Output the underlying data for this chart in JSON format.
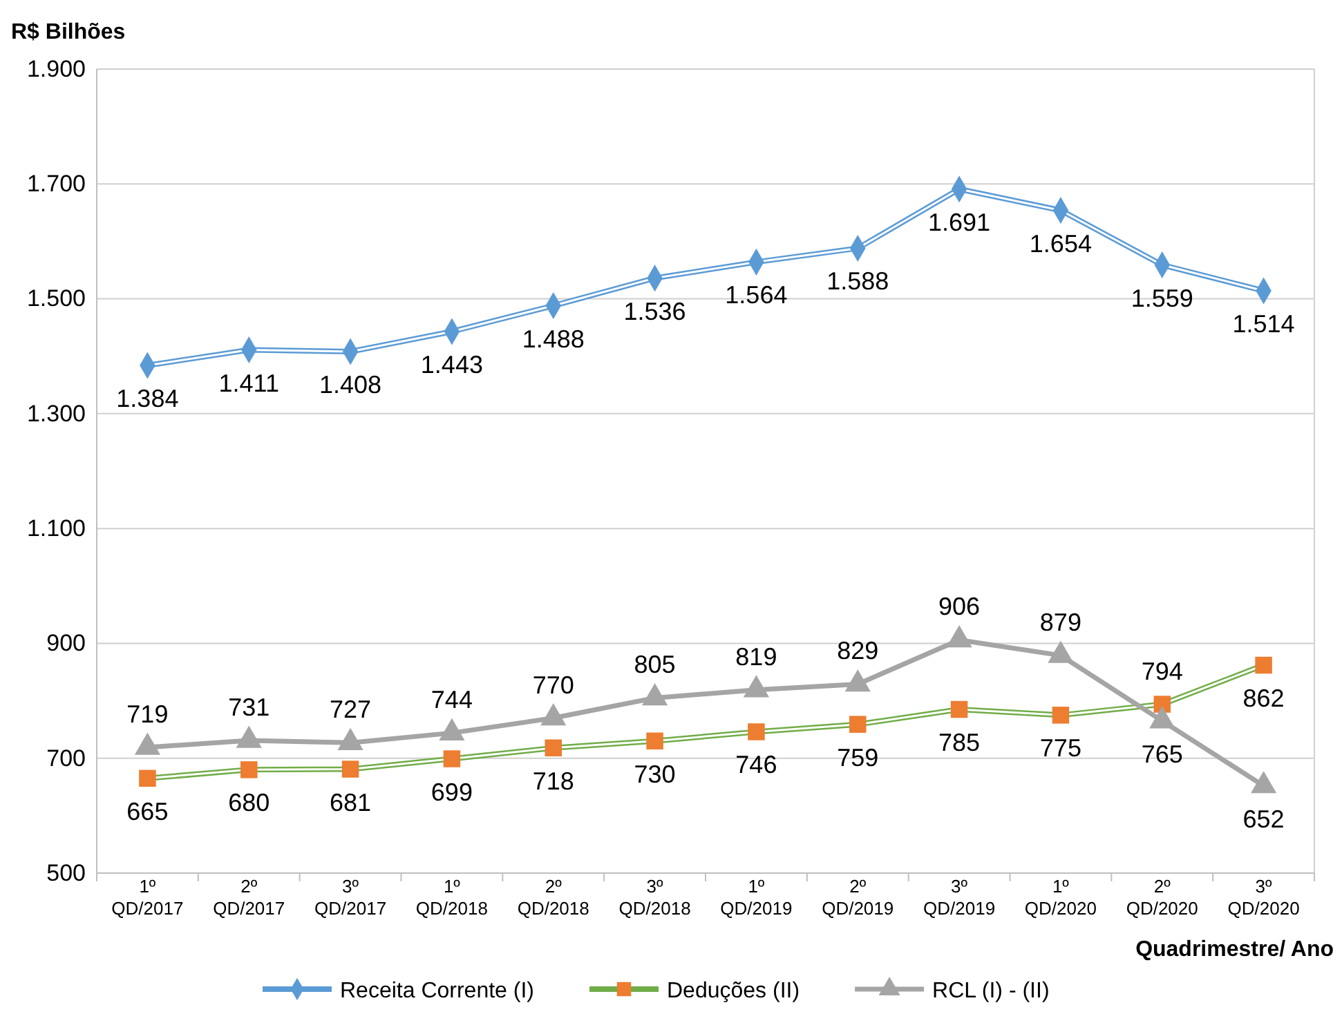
{
  "chart_data": {
    "type": "line",
    "ylabel": "R$ Bilhões",
    "xlabel": "Quadrimestre/ Ano",
    "categories": [
      "1º QD/2017",
      "2º QD/2017",
      "3º QD/2017",
      "1º QD/2018",
      "2º QD/2018",
      "3º QD/2018",
      "1º QD/2019",
      "2º QD/2019",
      "3º QD/2019",
      "1º QD/2020",
      "2º QD/2020",
      "3º QD/2020"
    ],
    "ylim": [
      500,
      1900
    ],
    "yticks": [
      {
        "value": 500,
        "label": "500"
      },
      {
        "value": 700,
        "label": "700"
      },
      {
        "value": 900,
        "label": "900"
      },
      {
        "value": 1100,
        "label": "1.100"
      },
      {
        "value": 1300,
        "label": "1.300"
      },
      {
        "value": 1500,
        "label": "1.500"
      },
      {
        "value": 1700,
        "label": "1.700"
      },
      {
        "value": 1900,
        "label": "1.900"
      }
    ],
    "grid": "y",
    "legend": "bottom",
    "series": [
      {
        "name": "Receita Corrente (I)",
        "color": "#5b9bd5",
        "marker": "diamond",
        "values": [
          1384,
          1411,
          1408,
          1443,
          1488,
          1536,
          1564,
          1588,
          1691,
          1654,
          1559,
          1514
        ],
        "value_labels": [
          "1.384",
          "1.411",
          "1.408",
          "1.443",
          "1.488",
          "1.536",
          "1.564",
          "1.588",
          "1.691",
          "1.654",
          "1.559",
          "1.514"
        ]
      },
      {
        "name": "Deduções (II)",
        "color": "#70ad47",
        "colors": [
          "#ed7d31",
          "#ed7d31",
          "#ed7d31",
          "#ed7d31",
          "#ed7d31",
          "#ed7d31",
          "#ed7d31",
          "#ed7d31",
          "#ed7d31",
          "#ed7d31",
          "#ed7d31",
          "#ed7d31"
        ],
        "marker": "square",
        "values": [
          665,
          680,
          681,
          699,
          718,
          730,
          746,
          759,
          785,
          775,
          794,
          862
        ],
        "value_labels": [
          "665",
          "680",
          "681",
          "699",
          "718",
          "730",
          "746",
          "759",
          "785",
          "775",
          "794",
          "862"
        ]
      },
      {
        "name": "RCL (I) - (II)",
        "color": "#a5a5a5",
        "marker": "triangle",
        "values": [
          719,
          731,
          727,
          744,
          770,
          805,
          819,
          829,
          906,
          879,
          765,
          652
        ],
        "value_labels": [
          "719",
          "731",
          "727",
          "744",
          "770",
          "805",
          "819",
          "829",
          "906",
          "879",
          "765",
          "652"
        ]
      }
    ]
  }
}
